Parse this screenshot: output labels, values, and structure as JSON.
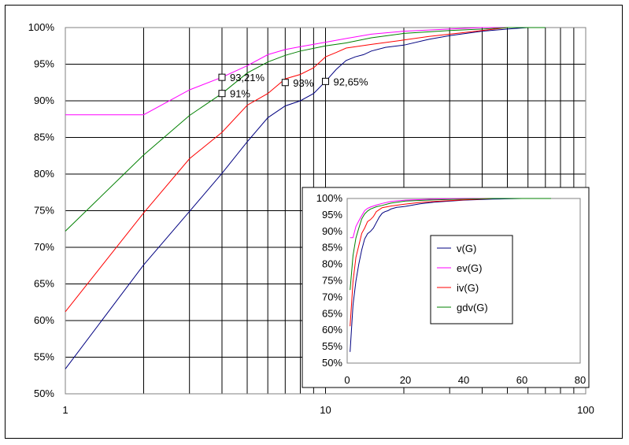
{
  "chart_data": [
    {
      "type": "line",
      "xscale": "log",
      "xlim": [
        1,
        100
      ],
      "ylim": [
        50,
        100
      ],
      "x_ticks": [
        "1",
        "10",
        "100"
      ],
      "y_ticks": [
        "50%",
        "55%",
        "60%",
        "65%",
        "70%",
        "75%",
        "80%",
        "85%",
        "90%",
        "95%",
        "100%"
      ],
      "grid": true,
      "series": [
        {
          "name": "v(G)",
          "color": "#000080",
          "x": [
            1,
            2,
            3,
            4,
            5,
            6,
            7,
            8,
            9,
            10,
            11,
            12,
            13,
            14,
            15,
            17,
            20,
            25,
            30,
            40,
            50,
            60,
            70
          ],
          "y": [
            53.4,
            67.6,
            74.9,
            80.1,
            84.4,
            87.7,
            89.3,
            90.0,
            91.0,
            92.65,
            94.3,
            95.5,
            96.0,
            96.3,
            96.8,
            97.3,
            97.6,
            98.4,
            98.9,
            99.5,
            99.8,
            100,
            100
          ]
        },
        {
          "name": "ev(G)",
          "color": "#ff00ff",
          "x": [
            1,
            2,
            3,
            4,
            5,
            6,
            7,
            8,
            10,
            12,
            15,
            20,
            30,
            40,
            50
          ],
          "y": [
            88.1,
            88.1,
            91.5,
            93.21,
            94.8,
            96.3,
            97.0,
            97.4,
            98.0,
            98.5,
            99.1,
            99.5,
            99.8,
            100,
            100
          ]
        },
        {
          "name": "iv(G)",
          "color": "#ff0000",
          "x": [
            1,
            2,
            3,
            4,
            5,
            6,
            7,
            8,
            9,
            10,
            11,
            12,
            15,
            20,
            25,
            30,
            40,
            50
          ],
          "y": [
            61.2,
            74.7,
            82.1,
            85.7,
            89.4,
            91.0,
            93.0,
            93.6,
            94.5,
            96.0,
            96.6,
            97.2,
            97.7,
            98.3,
            98.8,
            99.1,
            99.6,
            100
          ]
        },
        {
          "name": "gdv(G)",
          "color": "#008000",
          "x": [
            1,
            2,
            3,
            4,
            5,
            6,
            7,
            8,
            10,
            12,
            15,
            20,
            30,
            40,
            50,
            70
          ],
          "y": [
            72.2,
            82.6,
            88.0,
            91.0,
            93.8,
            95.3,
            96.2,
            96.8,
            97.5,
            97.9,
            98.6,
            99.2,
            99.6,
            99.8,
            100,
            100
          ]
        }
      ],
      "markers": [
        {
          "x": 4,
          "y": 93.21,
          "label": "93,21%"
        },
        {
          "x": 4,
          "y": 91,
          "label": "91%"
        },
        {
          "x": 7,
          "y": 92.5,
          "label": "93%"
        },
        {
          "x": 10,
          "y": 92.65,
          "label": "92,65%"
        }
      ]
    },
    {
      "type": "line",
      "xlim": [
        0,
        80
      ],
      "ylim": [
        50,
        100
      ],
      "x_ticks": [
        "0",
        "20",
        "40",
        "60",
        "80"
      ],
      "y_ticks": [
        "50%",
        "55%",
        "60%",
        "65%",
        "70%",
        "75%",
        "80%",
        "85%",
        "90%",
        "95%",
        "100%"
      ],
      "grid": false,
      "legend": [
        "v(G)",
        "ev(G)",
        "iv(G)",
        "gdv(G)"
      ],
      "legend_position": "center"
    }
  ]
}
